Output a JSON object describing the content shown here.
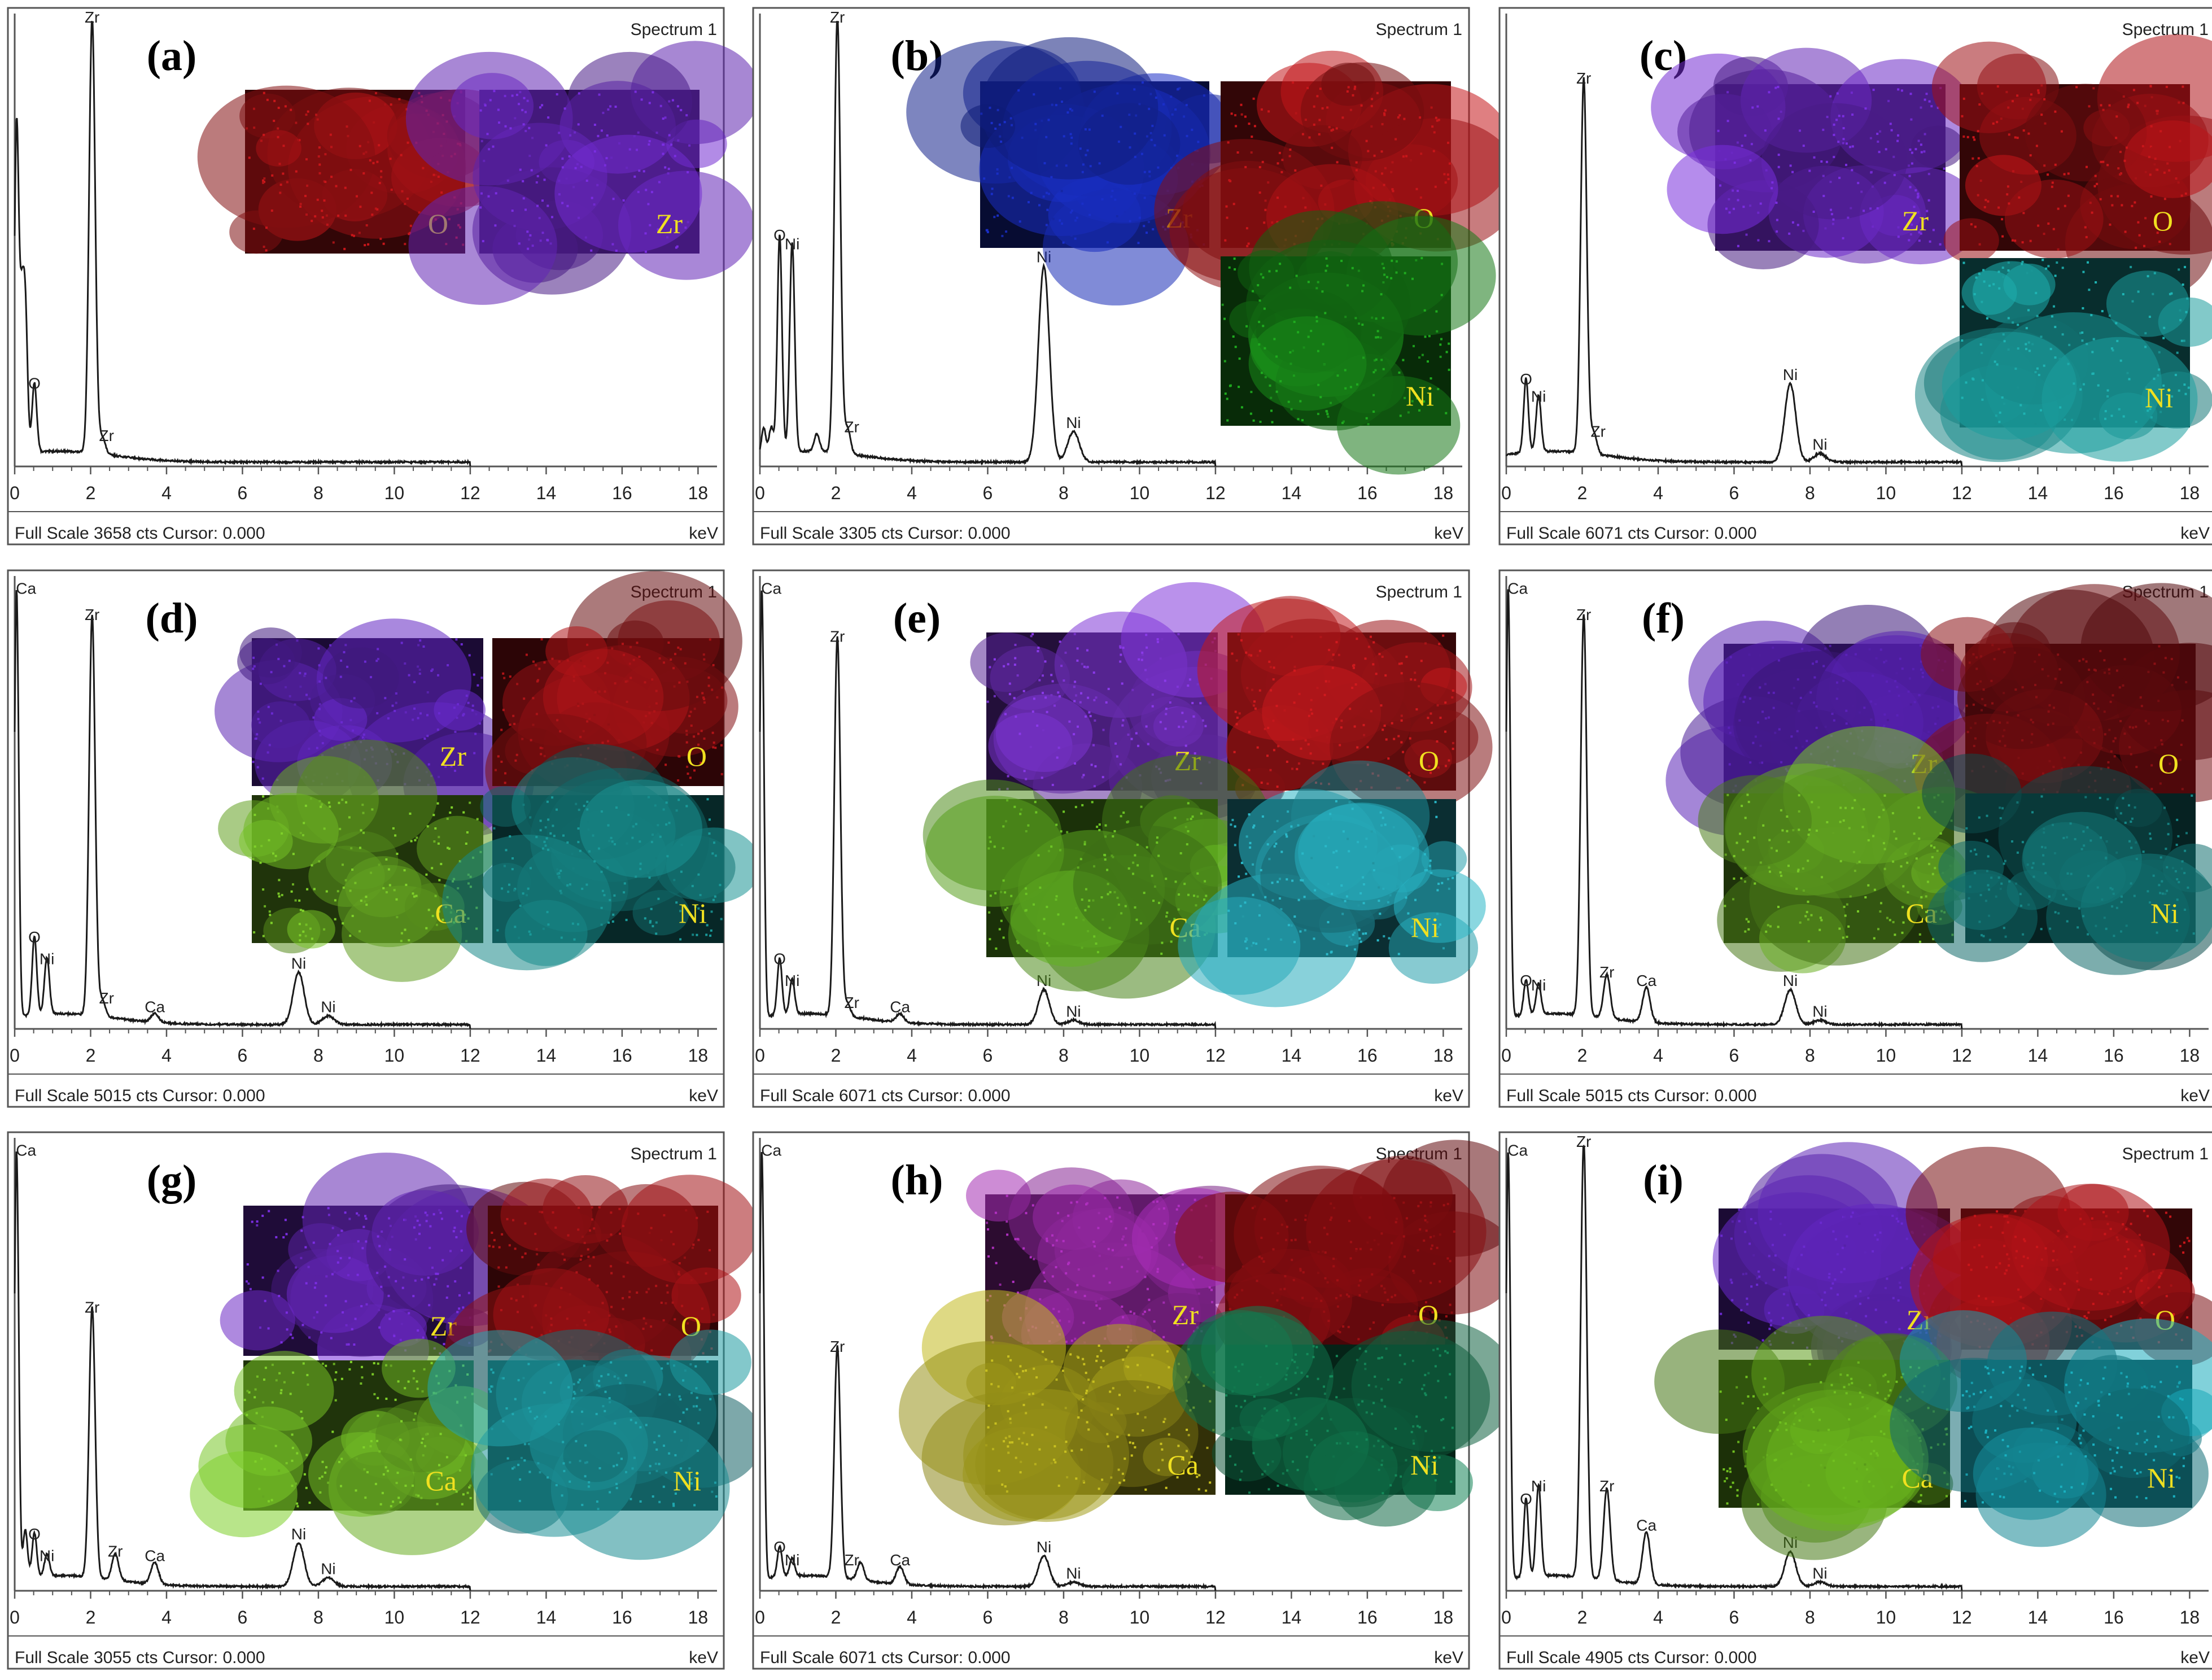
{
  "chart_data": [
    {
      "type": "line",
      "panel": "(a)",
      "spectrum_label": "Spectrum 1",
      "footer": "Full Scale 3658 cts Cursor: 0.000",
      "xlabel": "keV",
      "xlim": [
        0,
        18.5
      ],
      "xticks": [
        0,
        2,
        4,
        6,
        8,
        10,
        12,
        14,
        16,
        18
      ],
      "full_scale": 3658,
      "ylim": [
        0,
        1
      ],
      "series": [
        {
          "peaks": [
            [
              0.05,
              0.75
            ],
            [
              0.18,
              0.3
            ],
            [
              0.28,
              0.32
            ],
            [
              0.52,
              0.16
            ],
            [
              2.04,
              1.0
            ],
            [
              2.3,
              0.04
            ]
          ],
          "baseline_end": 12.0
        }
      ],
      "peak_labels": [
        {
          "text": "Zr",
          "x": 2.04,
          "y": 1.0
        },
        {
          "text": "O",
          "x": 0.52,
          "y": 0.16
        },
        {
          "text": "Zr",
          "x": 2.42,
          "y": 0.04
        }
      ],
      "maps": [
        {
          "label": "O",
          "color": "#c8161a"
        },
        {
          "label": "Zr",
          "color": "#7a2ee0"
        }
      ]
    },
    {
      "type": "line",
      "panel": "(b)",
      "spectrum_label": "Spectrum 1",
      "footer": "Full Scale 3305 cts Cursor: 0.000",
      "xlabel": "keV",
      "xlim": [
        0,
        18.5
      ],
      "xticks": [
        0,
        2,
        4,
        6,
        8,
        10,
        12,
        14,
        16,
        18
      ],
      "full_scale": 3305,
      "ylim": [
        0,
        1
      ],
      "series": [
        {
          "peaks": [
            [
              0.1,
              0.06
            ],
            [
              0.3,
              0.06
            ],
            [
              0.52,
              0.5
            ],
            [
              0.85,
              0.48
            ],
            [
              1.5,
              0.04
            ],
            [
              2.04,
              1.0
            ],
            [
              2.3,
              0.06
            ],
            [
              7.48,
              0.45
            ],
            [
              8.26,
              0.07
            ]
          ],
          "baseline_end": 12.0
        }
      ],
      "peak_labels": [
        {
          "text": "Zr",
          "x": 2.04,
          "y": 1.0
        },
        {
          "text": "Ni",
          "x": 0.85,
          "y": 0.48
        },
        {
          "text": "O",
          "x": 0.52,
          "y": 0.5
        },
        {
          "text": "Ni",
          "x": 7.48,
          "y": 0.45
        },
        {
          "text": "Zr",
          "x": 2.42,
          "y": 0.06
        },
        {
          "text": "Ni",
          "x": 8.26,
          "y": 0.07
        }
      ],
      "maps": [
        {
          "label": "Zr",
          "color": "#1a2fc8"
        },
        {
          "label": "O",
          "color": "#c8161a"
        },
        {
          "label": "Ni",
          "color": "#1faa1f"
        }
      ]
    },
    {
      "type": "line",
      "panel": "(c)",
      "spectrum_label": "Spectrum 1",
      "footer": "Full Scale 6071 cts Cursor: 0.000",
      "xlabel": "keV",
      "xlim": [
        0,
        18.5
      ],
      "xticks": [
        0,
        2,
        4,
        6,
        8,
        10,
        12,
        14,
        16,
        18
      ],
      "full_scale": 6071,
      "ylim": [
        0,
        1
      ],
      "series": [
        {
          "peaks": [
            [
              0.52,
              0.17
            ],
            [
              0.85,
              0.13
            ],
            [
              2.04,
              0.86
            ],
            [
              2.3,
              0.05
            ],
            [
              7.48,
              0.18
            ],
            [
              8.26,
              0.02
            ]
          ],
          "baseline_end": 12.0
        }
      ],
      "peak_labels": [
        {
          "text": "Zr",
          "x": 2.04,
          "y": 0.86
        },
        {
          "text": "O",
          "x": 0.52,
          "y": 0.17
        },
        {
          "text": "Ni",
          "x": 0.85,
          "y": 0.13
        },
        {
          "text": "Zr",
          "x": 2.42,
          "y": 0.05
        },
        {
          "text": "Ni",
          "x": 7.48,
          "y": 0.18
        },
        {
          "text": "Ni",
          "x": 8.26,
          "y": 0.02
        }
      ],
      "maps": [
        {
          "label": "Zr",
          "color": "#7a2ee0"
        },
        {
          "label": "O",
          "color": "#c8161a"
        },
        {
          "label": "Ni",
          "color": "#1fb3b3"
        }
      ]
    },
    {
      "type": "line",
      "panel": "(d)",
      "spectrum_label": "Spectrum 1",
      "footer": "Full Scale 5015 cts Cursor: 0.000",
      "xlabel": "keV",
      "xlim": [
        0,
        18.5
      ],
      "xticks": [
        0,
        2,
        4,
        6,
        8,
        10,
        12,
        14,
        16,
        18
      ],
      "full_scale": 5015,
      "ylim": [
        0,
        1
      ],
      "series": [
        {
          "peaks": [
            [
              0.05,
              0.98
            ],
            [
              0.52,
              0.18
            ],
            [
              0.85,
              0.13
            ],
            [
              2.04,
              0.92
            ],
            [
              2.3,
              0.04
            ],
            [
              3.69,
              0.02
            ],
            [
              7.48,
              0.12
            ],
            [
              8.26,
              0.02
            ]
          ],
          "baseline_end": 12.0
        }
      ],
      "peak_labels": [
        {
          "text": "Ca",
          "x": 0.3,
          "y": 0.98
        },
        {
          "text": "Zr",
          "x": 2.04,
          "y": 0.92
        },
        {
          "text": "O",
          "x": 0.52,
          "y": 0.18
        },
        {
          "text": "Ni",
          "x": 0.85,
          "y": 0.13
        },
        {
          "text": "Zr",
          "x": 2.42,
          "y": 0.04
        },
        {
          "text": "Ca",
          "x": 3.69,
          "y": 0.02
        },
        {
          "text": "Ni",
          "x": 7.48,
          "y": 0.12
        },
        {
          "text": "Ni",
          "x": 8.26,
          "y": 0.02
        }
      ],
      "maps": [
        {
          "label": "Zr",
          "color": "#6a2ad0"
        },
        {
          "label": "O",
          "color": "#b01418"
        },
        {
          "label": "Ca",
          "color": "#7fd02a"
        },
        {
          "label": "Ni",
          "color": "#1a9a9a"
        }
      ]
    },
    {
      "type": "line",
      "panel": "(e)",
      "spectrum_label": "Spectrum 1",
      "footer": "Full Scale 6071 cts Cursor: 0.000",
      "xlabel": "keV",
      "xlim": [
        0,
        18.5
      ],
      "xticks": [
        0,
        2,
        4,
        6,
        8,
        10,
        12,
        14,
        16,
        18
      ],
      "full_scale": 6071,
      "ylim": [
        0,
        1
      ],
      "series": [
        {
          "peaks": [
            [
              0.05,
              0.98
            ],
            [
              0.52,
              0.13
            ],
            [
              0.85,
              0.08
            ],
            [
              2.04,
              0.87
            ],
            [
              2.3,
              0.03
            ],
            [
              3.69,
              0.02
            ],
            [
              7.48,
              0.08
            ],
            [
              8.26,
              0.01
            ]
          ],
          "baseline_end": 12.0
        }
      ],
      "peak_labels": [
        {
          "text": "Ca",
          "x": 0.3,
          "y": 0.98
        },
        {
          "text": "Zr",
          "x": 2.04,
          "y": 0.87
        },
        {
          "text": "O",
          "x": 0.52,
          "y": 0.13
        },
        {
          "text": "Ni",
          "x": 0.85,
          "y": 0.08
        },
        {
          "text": "Zr",
          "x": 2.42,
          "y": 0.03
        },
        {
          "text": "Ca",
          "x": 3.69,
          "y": 0.02
        },
        {
          "text": "Ni",
          "x": 7.48,
          "y": 0.08
        },
        {
          "text": "Ni",
          "x": 8.26,
          "y": 0.01
        }
      ],
      "maps": [
        {
          "label": "Zr",
          "color": "#8a3ae8"
        },
        {
          "label": "O",
          "color": "#d01a1e"
        },
        {
          "label": "Ca",
          "color": "#6cc425"
        },
        {
          "label": "Ni",
          "color": "#2ab8c8"
        }
      ]
    },
    {
      "type": "line",
      "panel": "(f)",
      "spectrum_label": "Spectrum 1",
      "footer": "Full Scale 5015 cts Cursor: 0.000",
      "xlabel": "keV",
      "xlim": [
        0,
        18.5
      ],
      "xticks": [
        0,
        2,
        4,
        6,
        8,
        10,
        12,
        14,
        16,
        18
      ],
      "full_scale": 5015,
      "ylim": [
        0,
        1
      ],
      "series": [
        {
          "peaks": [
            [
              0.05,
              0.98
            ],
            [
              0.52,
              0.08
            ],
            [
              0.85,
              0.07
            ],
            [
              2.04,
              0.92
            ],
            [
              2.65,
              0.1
            ],
            [
              3.69,
              0.08
            ],
            [
              7.48,
              0.08
            ],
            [
              8.26,
              0.01
            ]
          ],
          "baseline_end": 12.0
        }
      ],
      "peak_labels": [
        {
          "text": "Ca",
          "x": 0.3,
          "y": 0.98
        },
        {
          "text": "Zr",
          "x": 2.04,
          "y": 0.92
        },
        {
          "text": "O",
          "x": 0.52,
          "y": 0.08
        },
        {
          "text": "Ni",
          "x": 0.85,
          "y": 0.07
        },
        {
          "text": "Zr",
          "x": 2.65,
          "y": 0.1
        },
        {
          "text": "Ca",
          "x": 3.69,
          "y": 0.08
        },
        {
          "text": "Ni",
          "x": 7.48,
          "y": 0.08
        },
        {
          "text": "Ni",
          "x": 8.26,
          "y": 0.01
        }
      ],
      "maps": [
        {
          "label": "Zr",
          "color": "#5a22b8"
        },
        {
          "label": "O",
          "color": "#8a1014"
        },
        {
          "label": "Ca",
          "color": "#78c828"
        },
        {
          "label": "Ni",
          "color": "#168888"
        }
      ]
    },
    {
      "type": "line",
      "panel": "(g)",
      "spectrum_label": "Spectrum 1",
      "footer": "Full Scale 3055 cts Cursor: 0.000",
      "xlabel": "keV",
      "xlim": [
        0,
        18.5
      ],
      "xticks": [
        0,
        2,
        4,
        6,
        8,
        10,
        12,
        14,
        16,
        18
      ],
      "full_scale": 3055,
      "ylim": [
        0,
        1
      ],
      "series": [
        {
          "peaks": [
            [
              0.05,
              0.98
            ],
            [
              0.28,
              0.11
            ],
            [
              0.52,
              0.1
            ],
            [
              0.85,
              0.05
            ],
            [
              2.04,
              0.62
            ],
            [
              2.65,
              0.06
            ],
            [
              3.69,
              0.05
            ],
            [
              7.48,
              0.1
            ],
            [
              8.26,
              0.02
            ]
          ],
          "baseline_end": 12.0
        }
      ],
      "peak_labels": [
        {
          "text": "Ca",
          "x": 0.3,
          "y": 0.98
        },
        {
          "text": "Zr",
          "x": 2.04,
          "y": 0.62
        },
        {
          "text": "O",
          "x": 0.52,
          "y": 0.1
        },
        {
          "text": "Ni",
          "x": 0.85,
          "y": 0.05
        },
        {
          "text": "Zr",
          "x": 2.65,
          "y": 0.06
        },
        {
          "text": "Ca",
          "x": 3.69,
          "y": 0.05
        },
        {
          "text": "Ni",
          "x": 7.48,
          "y": 0.1
        },
        {
          "text": "Ni",
          "x": 8.26,
          "y": 0.02
        }
      ],
      "maps": [
        {
          "label": "Zr",
          "color": "#7a2ee0"
        },
        {
          "label": "O",
          "color": "#b01418"
        },
        {
          "label": "Ca",
          "color": "#7fd02a"
        },
        {
          "label": "Ni",
          "color": "#20a8b0"
        }
      ]
    },
    {
      "type": "line",
      "panel": "(h)",
      "spectrum_label": "Spectrum 1",
      "footer": "Full Scale 6071 cts Cursor: 0.000",
      "xlabel": "keV",
      "xlim": [
        0,
        18.5
      ],
      "xticks": [
        0,
        2,
        4,
        6,
        8,
        10,
        12,
        14,
        16,
        18
      ],
      "full_scale": 6071,
      "ylim": [
        0,
        1
      ],
      "series": [
        {
          "peaks": [
            [
              0.05,
              0.98
            ],
            [
              0.52,
              0.07
            ],
            [
              0.85,
              0.04
            ],
            [
              2.04,
              0.53
            ],
            [
              2.65,
              0.04
            ],
            [
              3.69,
              0.04
            ],
            [
              7.48,
              0.07
            ],
            [
              8.26,
              0.01
            ]
          ],
          "baseline_end": 12.0
        }
      ],
      "peak_labels": [
        {
          "text": "Ca",
          "x": 0.3,
          "y": 0.98
        },
        {
          "text": "Zr",
          "x": 2.04,
          "y": 0.53
        },
        {
          "text": "O",
          "x": 0.52,
          "y": 0.07
        },
        {
          "text": "Ni",
          "x": 0.85,
          "y": 0.04
        },
        {
          "text": "Zr",
          "x": 2.42,
          "y": 0.04
        },
        {
          "text": "Ca",
          "x": 3.69,
          "y": 0.04
        },
        {
          "text": "Ni",
          "x": 7.48,
          "y": 0.07
        },
        {
          "text": "Ni",
          "x": 8.26,
          "y": 0.01
        }
      ],
      "maps": [
        {
          "label": "Zr",
          "color": "#b030c0"
        },
        {
          "label": "O",
          "color": "#a01014"
        },
        {
          "label": "Ca",
          "color": "#c8c020"
        },
        {
          "label": "Ni",
          "color": "#148a5a"
        }
      ]
    },
    {
      "type": "line",
      "panel": "(i)",
      "spectrum_label": "Spectrum 1",
      "footer": "Full Scale 4905 cts Cursor: 0.000",
      "xlabel": "keV",
      "xlim": [
        0,
        18.5
      ],
      "xticks": [
        0,
        2,
        4,
        6,
        8,
        10,
        12,
        14,
        16,
        18
      ],
      "full_scale": 4905,
      "ylim": [
        0,
        1
      ],
      "series": [
        {
          "peaks": [
            [
              0.05,
              0.98
            ],
            [
              0.52,
              0.18
            ],
            [
              0.85,
              0.21
            ],
            [
              2.04,
              1.0
            ],
            [
              2.65,
              0.21
            ],
            [
              3.69,
              0.12
            ],
            [
              7.48,
              0.08
            ],
            [
              8.26,
              0.01
            ]
          ],
          "baseline_end": 12.0
        }
      ],
      "peak_labels": [
        {
          "text": "Ca",
          "x": 0.3,
          "y": 0.98
        },
        {
          "text": "Zr",
          "x": 2.04,
          "y": 1.0
        },
        {
          "text": "Ni",
          "x": 0.85,
          "y": 0.21
        },
        {
          "text": "O",
          "x": 0.52,
          "y": 0.18
        },
        {
          "text": "Zr",
          "x": 2.65,
          "y": 0.21
        },
        {
          "text": "Ca",
          "x": 3.69,
          "y": 0.12
        },
        {
          "text": "Ni",
          "x": 7.48,
          "y": 0.08
        },
        {
          "text": "Ni",
          "x": 8.26,
          "y": 0.01
        }
      ],
      "maps": [
        {
          "label": "Zr",
          "color": "#6a2ad0"
        },
        {
          "label": "O",
          "color": "#c8161a"
        },
        {
          "label": "Ca",
          "color": "#70c020"
        },
        {
          "label": "Ni",
          "color": "#1ab0c0"
        }
      ]
    }
  ],
  "colors": {
    "line": "#1a1a1a",
    "frame": "#555555",
    "map_label": "#f0e020",
    "background": "#ffffff"
  }
}
